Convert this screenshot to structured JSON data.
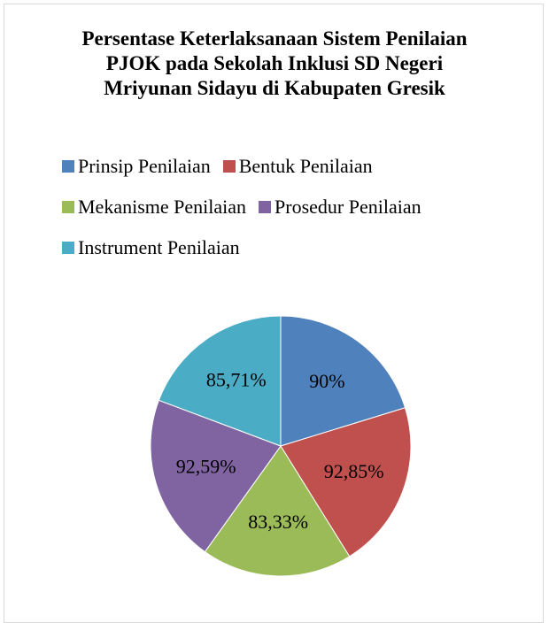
{
  "chart_data": {
    "type": "pie",
    "title": "Persentase Keterlaksanaan Sistem Penilaian PJOK pada Sekolah Inklusi SD Negeri Mriyunan Sidayu di Kabupaten Gresik",
    "categories": [
      "Prinsip Penilaian",
      "Bentuk Penilaian",
      "Mekanisme Penilaian",
      "Prosedur Penilaian",
      "Instrument Penilaian"
    ],
    "values": [
      90,
      92.85,
      83.33,
      92.59,
      85.71
    ],
    "value_labels": [
      "90%",
      "92,85%",
      "83,33%",
      "92,59%",
      "85,71%"
    ],
    "colors": [
      "#4f81bd",
      "#c0504d",
      "#9bbb59",
      "#8064a2",
      "#4bacc6"
    ],
    "legend": "top"
  }
}
